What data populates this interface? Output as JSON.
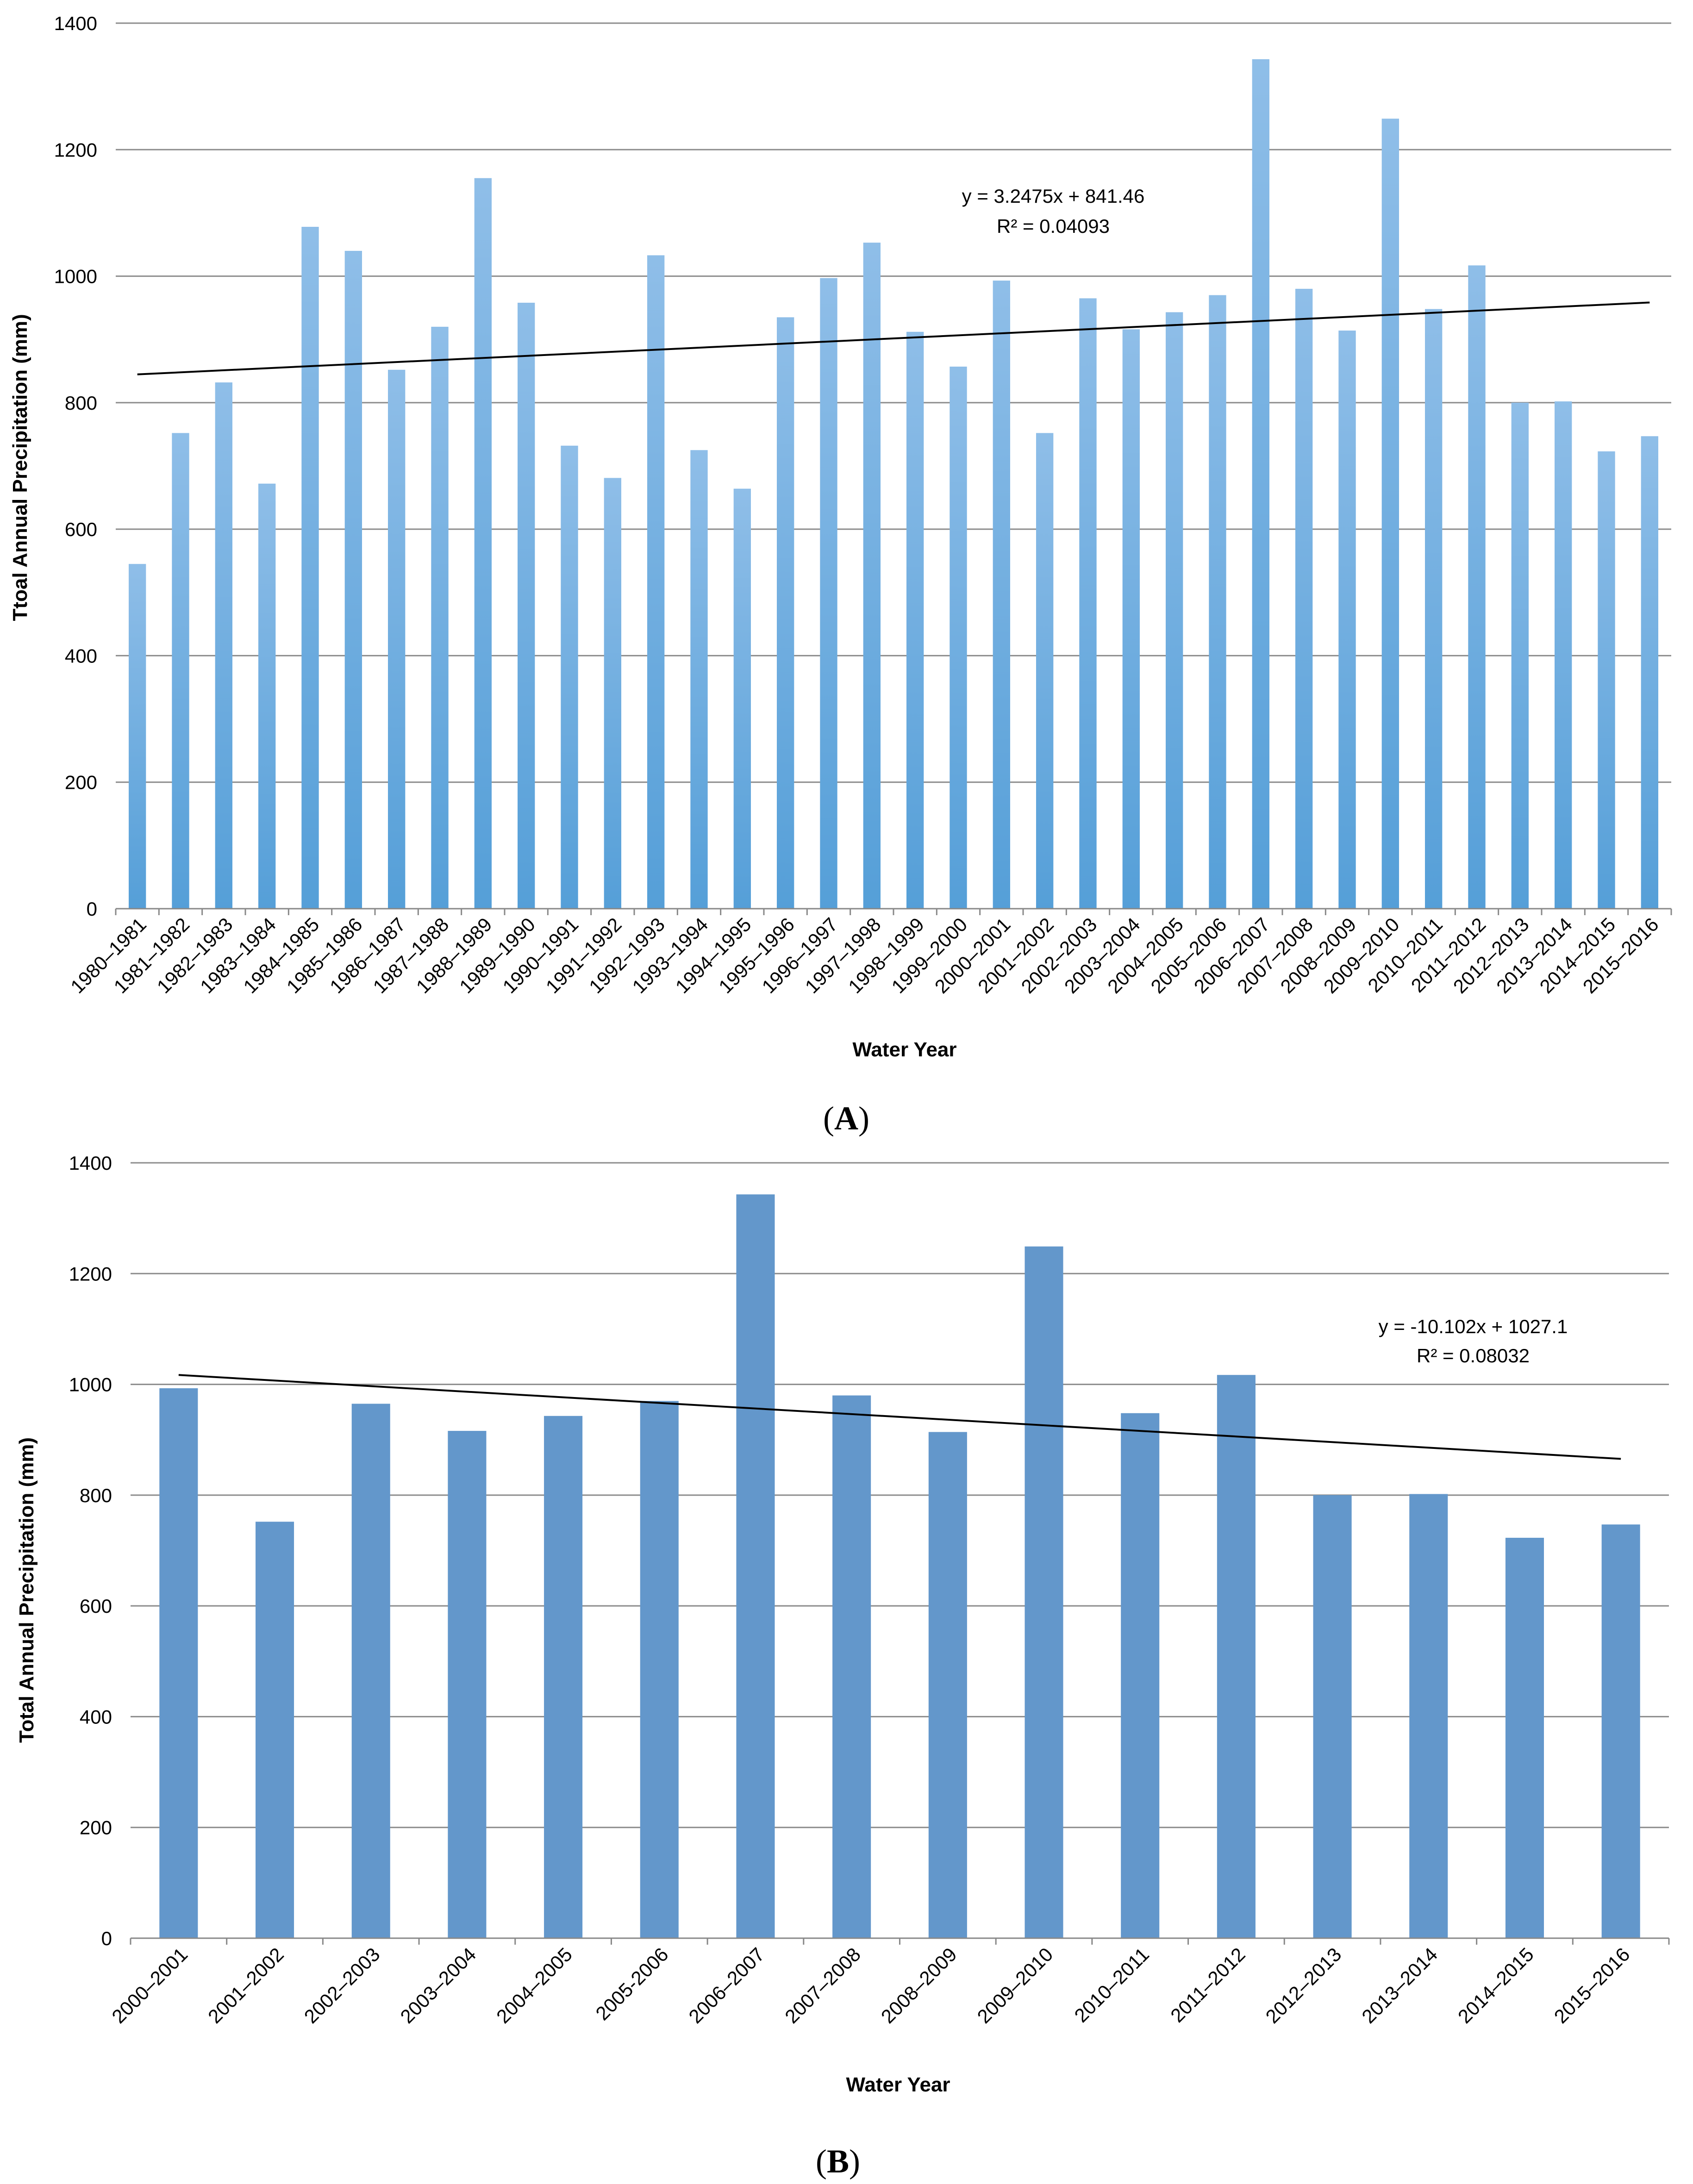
{
  "chart_data": [
    {
      "type": "bar",
      "panel_label": "A",
      "title": "",
      "xlabel": "Water Year",
      "ylabel": "Ttoal Annual Precipitation (mm)",
      "ylim": [
        0,
        1400
      ],
      "yticks": [
        0,
        200,
        400,
        600,
        800,
        1000,
        1200,
        1400
      ],
      "grid": true,
      "categories": [
        "1980–1981",
        "1981–1982",
        "1982–1983",
        "1983–1984",
        "1984–1985",
        "1985–1986",
        "1986–1987",
        "1987–1988",
        "1988–1989",
        "1989–1990",
        "1990–1991",
        "1991–1992",
        "1992–1993",
        "1993–1994",
        "1994–1995",
        "1995–1996",
        "1996–1997",
        "1997–1998",
        "1998–1999",
        "1999–2000",
        "2000–2001",
        "2001–2002",
        "2002–2003",
        "2003–2004",
        "2004–2005",
        "2005–2006",
        "2006–2007",
        "2007–2008",
        "2008–2009",
        "2009–2010",
        "2010–2011",
        "2011–2012",
        "2012–2013",
        "2013–2014",
        "2014–2015",
        "2015–2016"
      ],
      "values": [
        545,
        752,
        832,
        672,
        1078,
        1040,
        852,
        920,
        1155,
        958,
        732,
        681,
        1033,
        725,
        664,
        935,
        997,
        1053,
        912,
        857,
        993,
        752,
        965,
        916,
        943,
        970,
        1343,
        980,
        914,
        1249,
        948,
        1017,
        800,
        802,
        723,
        747
      ],
      "trendline": {
        "slope": 3.2475,
        "intercept": 841.46,
        "equation": "y = 3.2475x + 841.46",
        "r2": "R² = 0.04093"
      },
      "bar_color": "#7ab2e2"
    },
    {
      "type": "bar",
      "panel_label": "B",
      "title": "",
      "xlabel": "Water Year",
      "ylabel": "Total Annual Precipitation (mm)",
      "ylim": [
        0,
        1400
      ],
      "yticks": [
        0,
        200,
        400,
        600,
        800,
        1000,
        1200,
        1400
      ],
      "grid": true,
      "categories": [
        "2000–2001",
        "2001–2002",
        "2002–2003",
        "2003–2004",
        "2004–2005",
        "2005-2006",
        "2006–2007",
        "2007–2008",
        "2008–2009",
        "2009–2010",
        "2010–2011",
        "2011–2012",
        "2012–2013",
        "2013–2014",
        "2014–2015",
        "2015–2016"
      ],
      "values": [
        993,
        752,
        965,
        916,
        943,
        970,
        1343,
        980,
        914,
        1249,
        948,
        1017,
        800,
        802,
        723,
        747
      ],
      "trendline": {
        "slope": -10.102,
        "intercept": 1027.1,
        "equation": "y = -10.102x + 1027.1",
        "r2": "R² = 0.08032"
      },
      "bar_color": "#6397cb"
    }
  ]
}
